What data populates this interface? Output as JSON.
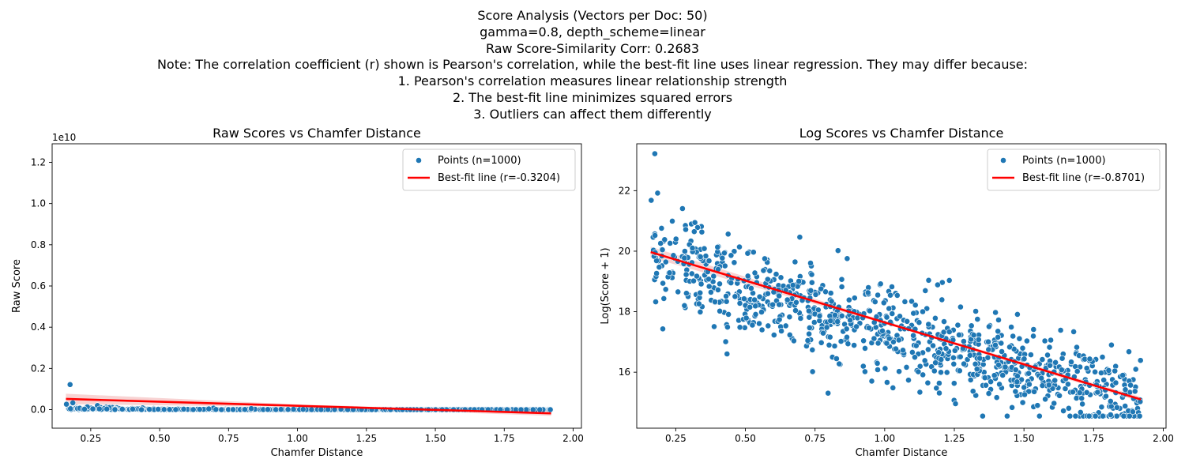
{
  "suptitle_lines": [
    "Score Analysis (Vectors per Doc: 50)",
    "gamma=0.8, depth_scheme=linear",
    "Raw Score-Similarity Corr: 0.2683",
    "Note: The correlation coefficient (r) shown is Pearson's correlation, while the best-fit line uses linear regression. They may differ because:",
    "1. Pearson's correlation measures linear relationship strength",
    "2. The best-fit line minimizes squared errors",
    "3. Outliers can affect them differently"
  ],
  "colors": {
    "points": "#1f77b4",
    "fit_line": "#ff0000",
    "band": "#f4b6b6"
  },
  "chart_data": [
    {
      "type": "scatter",
      "title": "Raw Scores vs Chamfer Distance",
      "xlabel": "Chamfer Distance",
      "ylabel": "Raw Score",
      "offset_text": "1e10",
      "xlim": [
        0.11,
        2.03
      ],
      "ylim": [
        -0.9,
        12.9
      ],
      "xticks": [
        "0.25",
        "0.50",
        "0.75",
        "1.00",
        "1.25",
        "1.50",
        "1.75",
        "2.00"
      ],
      "xtick_values": [
        0.25,
        0.5,
        0.75,
        1.0,
        1.25,
        1.5,
        1.75,
        2.0
      ],
      "yticks": [
        "0.0",
        "0.2",
        "0.4",
        "0.6",
        "0.8",
        "1.0",
        "1.2"
      ],
      "ytick_values": [
        0,
        2,
        4,
        6,
        8,
        10,
        12
      ],
      "grid": false,
      "legend_position": "top-right",
      "series": [
        {
          "name": "Points (n=1000)",
          "kind": "scatter",
          "n": 1000
        },
        {
          "name": "Best-fit line (r=-0.3204)",
          "kind": "line",
          "x": [
            0.16,
            1.92
          ],
          "y": [
            0.52,
            -0.18
          ]
        }
      ]
    },
    {
      "type": "scatter",
      "title": "Log Scores vs Chamfer Distance",
      "xlabel": "Chamfer Distance",
      "ylabel": "Log(Score + 1)",
      "xlim": [
        0.11,
        2.01
      ],
      "ylim": [
        14.15,
        23.55
      ],
      "xticks": [
        "0.25",
        "0.50",
        "0.75",
        "1.00",
        "1.25",
        "1.50",
        "1.75",
        "2.00"
      ],
      "xtick_values": [
        0.25,
        0.5,
        0.75,
        1.0,
        1.25,
        1.5,
        1.75,
        2.0
      ],
      "yticks": [
        "16",
        "18",
        "20",
        "22"
      ],
      "ytick_values": [
        16,
        18,
        20,
        22
      ],
      "grid": false,
      "legend_position": "top-right",
      "series": [
        {
          "name": "Points (n=1000)",
          "kind": "scatter",
          "n": 1000
        },
        {
          "name": "Best-fit line (r=-0.8701)",
          "kind": "line",
          "x": [
            0.16,
            1.92
          ],
          "y": [
            19.97,
            15.1
          ]
        }
      ]
    }
  ]
}
